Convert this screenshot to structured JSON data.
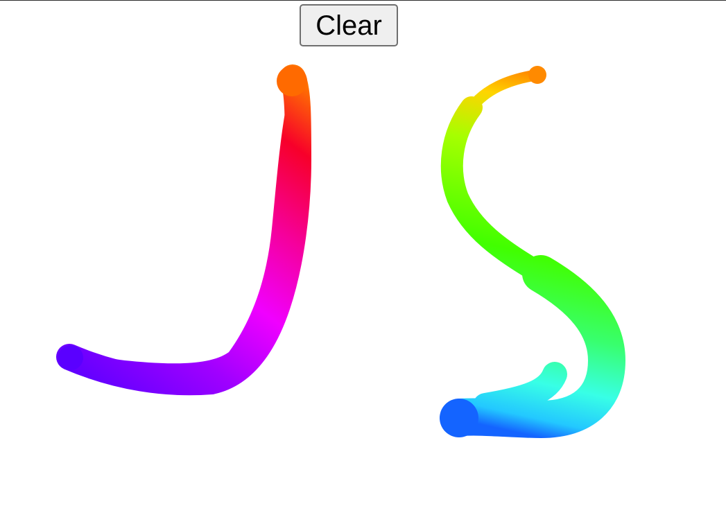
{
  "toolbar": {
    "clear_label": "Clear"
  },
  "canvas": {
    "background": "#ffffff",
    "stroke_colors": {
      "stroke_one": [
        "#5a00ff",
        "#a000ff",
        "#f000ff",
        "#f5009a",
        "#f7002a",
        "#ff7300"
      ],
      "stroke_two": [
        "#ff8a00",
        "#ffd400",
        "#a6ff00",
        "#41ff00",
        "#38ff6e",
        "#38ffe6",
        "#23c8ff",
        "#1464ff"
      ]
    }
  }
}
